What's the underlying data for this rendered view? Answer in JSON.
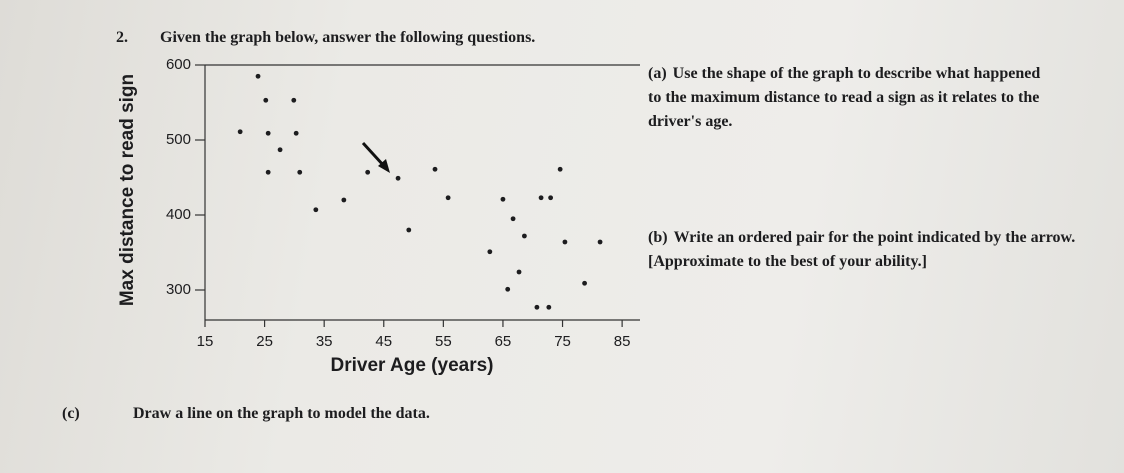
{
  "question": {
    "number": "2.",
    "text": "Given the graph below, answer the following questions."
  },
  "chart_data": {
    "type": "scatter",
    "xlabel": "Driver Age (years)",
    "ylabel": "Max distance to read sign",
    "x": [
      23.9,
      25.2,
      29.9,
      20.9,
      25.6,
      30.3,
      27.6,
      25.6,
      30.9,
      42.3,
      47.4,
      53.6,
      74.6,
      38.3,
      33.6,
      55.8,
      65.0,
      71.4,
      73.0,
      66.7,
      49.2,
      68.6,
      75.4,
      81.3,
      62.8,
      67.7,
      78.7,
      65.8,
      70.7,
      72.7
    ],
    "values": [
      585,
      553,
      553,
      511,
      509,
      509,
      487,
      457,
      457,
      457,
      449,
      461,
      461,
      420,
      407,
      423,
      421,
      423,
      423,
      395,
      380,
      372,
      364,
      364,
      351,
      324,
      309,
      301,
      277,
      277
    ],
    "color": "#1d1d1f",
    "xlim": [
      15,
      88
    ],
    "ylim": [
      260,
      600
    ],
    "xticks": [
      15,
      25,
      35,
      45,
      55,
      65,
      75,
      85
    ],
    "yticks": [
      300,
      400,
      500,
      600
    ]
  },
  "parts": [
    {
      "label": "(a)",
      "text": "Use the shape of the graph to describe what happened to the maximum distance to read a sign as it relates to the driver's age."
    },
    {
      "label": "(b)",
      "text": "Write an ordered pair for the point indicated by the arrow. [Approximate to the best of your ability.]"
    },
    {
      "label": "(c)",
      "text": "Draw a line on the graph to model the data."
    }
  ]
}
